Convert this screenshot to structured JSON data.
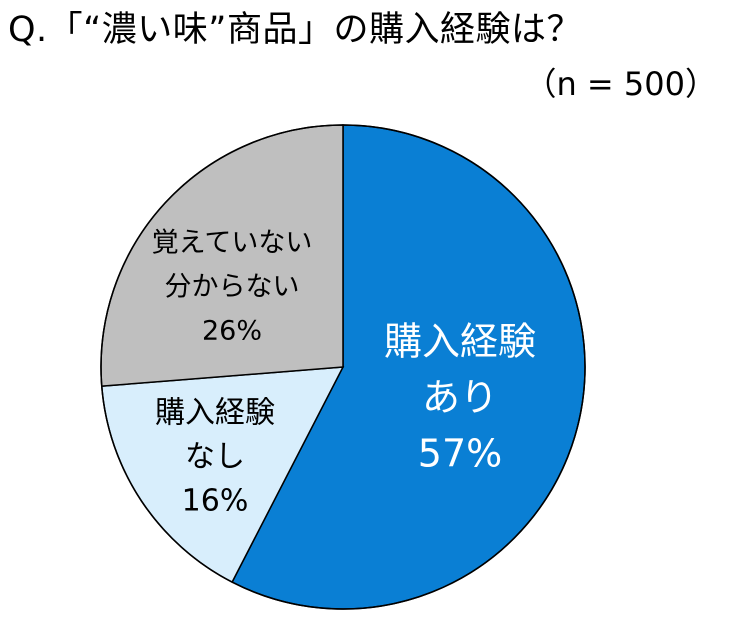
{
  "title": "Q.「“濃い味”商品」の購入経験は？",
  "sample": "（n = 500）",
  "chart_data": {
    "type": "pie",
    "slices": [
      {
        "label_lines": [
          "購入経験",
          "あり"
        ],
        "pct_label": "57%",
        "value": 57,
        "color": "#0a7fd4",
        "text_color": "#ffffff"
      },
      {
        "label_lines": [
          "購入経験",
          "なし"
        ],
        "pct_label": "16%",
        "value": 16,
        "color": "#d8eefc",
        "text_color": "#000000"
      },
      {
        "label_lines": [
          "覚えていない",
          "分からない"
        ],
        "pct_label": "26%",
        "value": 26,
        "color": "#bfbfbf",
        "text_color": "#000000"
      }
    ],
    "start": "12 o'clock",
    "direction": "clockwise",
    "legend": "none"
  }
}
